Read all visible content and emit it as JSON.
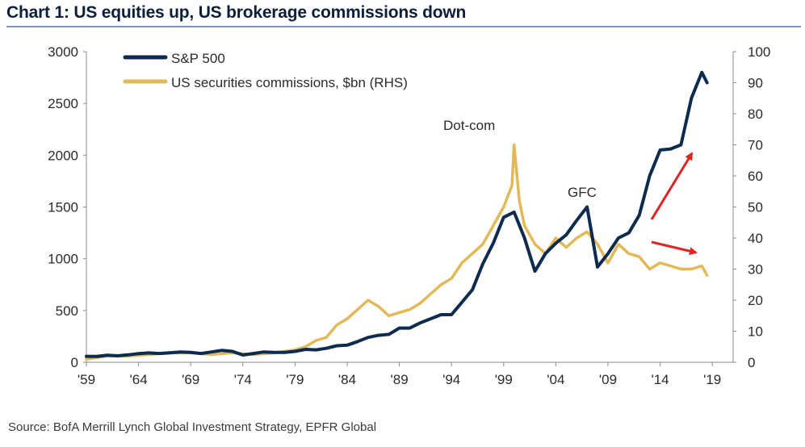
{
  "header": {
    "title": "Chart 1: US equities up, US brokerage commissions down"
  },
  "footer": {
    "source": "Source:  BofA Merrill Lynch Global Investment Strategy, EPFR Global"
  },
  "colors": {
    "sp500": "#0d2a4f",
    "commissions": "#e3b958",
    "arrow": "#e32222",
    "axis": "#8a8a8a",
    "text": "#2a2a2a"
  },
  "chart_data": {
    "type": "line",
    "title": "Chart 1: US equities up, US brokerage commissions down",
    "xlabel": "",
    "ylabel": "",
    "xlim": [
      1959,
      2021
    ],
    "ylim": [
      0,
      3000
    ],
    "ylim_right": [
      0,
      100
    ],
    "x_ticks": [
      1959,
      1964,
      1969,
      1974,
      1979,
      1984,
      1989,
      1994,
      1999,
      2004,
      2009,
      2014,
      2019
    ],
    "x_tick_labels": [
      "'59",
      "'64",
      "'69",
      "'74",
      "'79",
      "'84",
      "'89",
      "'94",
      "'99",
      "'04",
      "'09",
      "'14",
      "'19"
    ],
    "y_ticks": [
      0,
      500,
      1000,
      1500,
      2000,
      2500,
      3000
    ],
    "y_tick_labels": [
      "0",
      "500",
      "1000",
      "1500",
      "2000",
      "2500",
      "3000"
    ],
    "y_right_ticks": [
      0,
      10,
      20,
      30,
      40,
      50,
      60,
      70,
      80,
      90,
      100
    ],
    "y_right_tick_labels": [
      "0",
      "10",
      "20",
      "30",
      "40",
      "50",
      "60",
      "70",
      "80",
      "90",
      "100"
    ],
    "legend_position": "top-left",
    "series": [
      {
        "name": "S&P 500",
        "axis": "left",
        "x": [
          1959,
          1960,
          1961,
          1962,
          1963,
          1964,
          1965,
          1966,
          1967,
          1968,
          1969,
          1970,
          1971,
          1972,
          1973,
          1974,
          1975,
          1976,
          1977,
          1978,
          1979,
          1980,
          1981,
          1982,
          1983,
          1984,
          1985,
          1986,
          1987,
          1988,
          1989,
          1990,
          1991,
          1992,
          1993,
          1994,
          1995,
          1996,
          1997,
          1998,
          1999,
          2000,
          2001,
          2002,
          2003,
          2004,
          2005,
          2006,
          2007,
          2008,
          2009,
          2010,
          2011,
          2012,
          2013,
          2014,
          2015,
          2016,
          2017,
          2018,
          2018.5
        ],
        "values": [
          58,
          57,
          68,
          62,
          72,
          84,
          90,
          85,
          92,
          100,
          95,
          85,
          100,
          115,
          105,
          70,
          85,
          100,
          95,
          95,
          105,
          125,
          120,
          135,
          160,
          165,
          200,
          240,
          260,
          270,
          330,
          330,
          380,
          420,
          460,
          460,
          580,
          700,
          950,
          1150,
          1400,
          1450,
          1200,
          880,
          1050,
          1150,
          1230,
          1370,
          1500,
          920,
          1050,
          1200,
          1250,
          1420,
          1800,
          2050,
          2060,
          2100,
          2550,
          2800,
          2700
        ]
      },
      {
        "name": "US securities commissions, $bn (RHS)",
        "axis": "right",
        "x": [
          1959,
          1961,
          1963,
          1965,
          1967,
          1969,
          1971,
          1973,
          1975,
          1977,
          1978,
          1979,
          1980,
          1981,
          1982,
          1983,
          1984,
          1985,
          1986,
          1987,
          1988,
          1989,
          1990,
          1991,
          1992,
          1993,
          1994,
          1995,
          1996,
          1997,
          1998,
          1999,
          1999.8,
          2000,
          2000.5,
          2001,
          2002,
          2003,
          2004,
          2005,
          2006,
          2007,
          2008,
          2009,
          2010,
          2011,
          2012,
          2013,
          2014,
          2015,
          2016,
          2017,
          2018,
          2018.5
        ],
        "values": [
          1,
          2,
          2,
          2.5,
          3,
          3,
          2.5,
          3,
          2.5,
          3,
          3.5,
          4,
          5,
          7,
          8,
          12,
          14,
          17,
          20,
          18,
          15,
          16,
          17,
          19,
          22,
          25,
          27,
          32,
          35,
          38,
          44,
          50,
          57,
          70,
          52,
          44,
          38,
          35,
          40,
          37,
          40,
          42,
          38,
          32,
          38,
          35,
          34,
          30,
          32,
          31,
          30,
          30,
          31,
          28
        ]
      }
    ],
    "annotations": [
      "Dot-com",
      "GFC"
    ]
  }
}
